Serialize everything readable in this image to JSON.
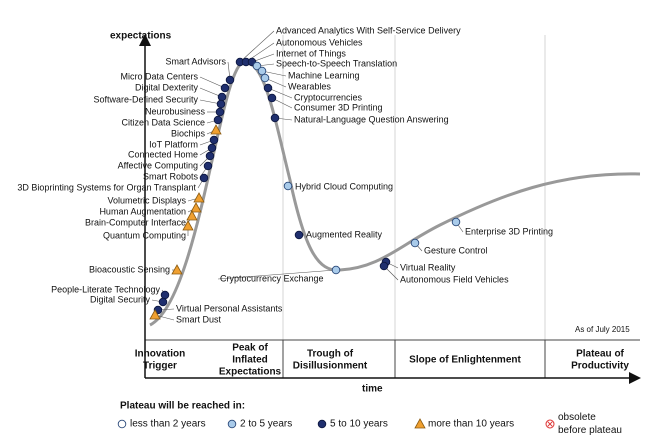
{
  "title": "expectations",
  "x_label": "time",
  "note": "As of July 2015",
  "phases": [
    {
      "lines": [
        "Innovation",
        "Trigger"
      ]
    },
    {
      "lines": [
        "Peak of",
        "Inflated",
        "Expectations"
      ]
    },
    {
      "lines": [
        "Trough of",
        "Disillusionment"
      ]
    },
    {
      "lines": [
        "Slope of Enlightenment"
      ]
    },
    {
      "lines": [
        "Plateau of",
        "Productivity"
      ]
    }
  ],
  "legend": {
    "title": "Plateau will be reached in:",
    "items": [
      {
        "lines": [
          "less than 2 years"
        ]
      },
      {
        "lines": [
          "2 to 5 years"
        ]
      },
      {
        "lines": [
          "5 to 10 years"
        ]
      },
      {
        "lines": [
          "more than 10 years"
        ]
      },
      {
        "lines": [
          "obsolete",
          "before plateau"
        ]
      }
    ]
  },
  "items": [
    {
      "label": "Smart Advisors",
      "category": 2
    },
    {
      "label": "Micro Data Centers",
      "category": 2
    },
    {
      "label": "Digital Dexterity",
      "category": 2
    },
    {
      "label": "Software-Defined Security",
      "category": 2
    },
    {
      "label": "Neurobusiness",
      "category": 2
    },
    {
      "label": "Citizen Data Science",
      "category": 2
    },
    {
      "label": "Biochips",
      "category": 3
    },
    {
      "label": "IoT Platform",
      "category": 2
    },
    {
      "label": "Connected Home",
      "category": 2
    },
    {
      "label": "Affective Computing",
      "category": 2
    },
    {
      "label": "Smart Robots",
      "category": 2
    },
    {
      "label": "3D Bioprinting Systems for Organ Transplant",
      "category": 2
    },
    {
      "label": "Volumetric Displays",
      "category": 3
    },
    {
      "label": "Human Augmentation",
      "category": 3
    },
    {
      "label": "Brain-Computer Interface",
      "category": 3
    },
    {
      "label": "Quantum Computing",
      "category": 3
    },
    {
      "label": "Bioacoustic Sensing",
      "category": 3
    },
    {
      "label": "People-Literate Technology",
      "category": 2
    },
    {
      "label": "Digital Security",
      "category": 2
    },
    {
      "label": "Virtual Personal Assistants",
      "category": 2
    },
    {
      "label": "Smart Dust",
      "category": 3
    },
    {
      "label": "Advanced Analytics With Self-Service Delivery",
      "category": 2
    },
    {
      "label": "Autonomous Vehicles",
      "category": 2
    },
    {
      "label": "Internet of Things",
      "category": 2
    },
    {
      "label": "Speech-to-Speech Translation",
      "category": 1
    },
    {
      "label": "Machine Learning",
      "category": 1
    },
    {
      "label": "Wearables",
      "category": 1
    },
    {
      "label": "Cryptocurrencies",
      "category": 2
    },
    {
      "label": "Consumer 3D Printing",
      "category": 2
    },
    {
      "label": "Natural-Language Question Answering",
      "category": 2
    },
    {
      "label": "Hybrid Cloud Computing",
      "category": 1
    },
    {
      "label": "Augmented Reality",
      "category": 2
    },
    {
      "label": "Cryptocurrency Exchange",
      "category": 1
    },
    {
      "label": "Virtual Reality",
      "category": 2
    },
    {
      "label": "Autonomous Field Vehicles",
      "category": 2
    },
    {
      "label": "Gesture Control",
      "category": 1
    },
    {
      "label": "Enterprise 3D Printing",
      "category": 1
    }
  ]
}
